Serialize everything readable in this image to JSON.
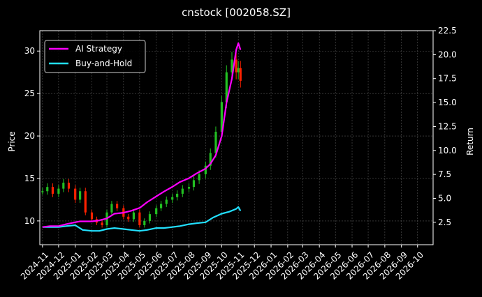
{
  "chart_data": {
    "type": "line",
    "title": "cnstock [002058.SZ]",
    "ylabel_left": "Price",
    "ylabel_right": "Return",
    "xlabel": "",
    "ylim_left": [
      7.2,
      32.4
    ],
    "ylim_right": [
      0.16,
      22.5
    ],
    "grid": true,
    "legend_placement": "top-left",
    "x_ticks": [
      "2024-11",
      "2024-12",
      "2025-01",
      "2025-02",
      "2025-03",
      "2025-04",
      "2025-05",
      "2025-06",
      "2025-07",
      "2025-08",
      "2025-09",
      "2025-10",
      "2025-11",
      "2025-12",
      "2026-01",
      "2026-02",
      "2026-03",
      "2026-04",
      "2026-05",
      "2026-06",
      "2026-07",
      "2026-08",
      "2026-09",
      "2026-10"
    ],
    "y_ticks_left": [
      10,
      15,
      20,
      25,
      30
    ],
    "y_ticks_right": [
      "2.5",
      "5.0",
      "7.5",
      "10.0",
      "12.5",
      "15.0",
      "17.5",
      "20.0",
      "22.5"
    ],
    "series": [
      {
        "name": "AI Strategy",
        "color": "#ff00ff",
        "axis": "right",
        "x": [
          "2024-11-01",
          "2024-11-15",
          "2024-12-01",
          "2024-12-15",
          "2025-01-01",
          "2025-01-10",
          "2025-02-01",
          "2025-02-15",
          "2025-03-01",
          "2025-03-15",
          "2025-04-01",
          "2025-04-15",
          "2025-05-01",
          "2025-05-15",
          "2025-06-01",
          "2025-06-15",
          "2025-07-01",
          "2025-07-15",
          "2025-08-01",
          "2025-08-15",
          "2025-09-01",
          "2025-09-10",
          "2025-09-20",
          "2025-10-01",
          "2025-10-10",
          "2025-10-20",
          "2025-10-28",
          "2025-11-01",
          "2025-11-05"
        ],
        "values": [
          2.0,
          2.1,
          2.1,
          2.3,
          2.5,
          2.6,
          2.6,
          2.7,
          2.9,
          3.4,
          3.5,
          3.7,
          4.0,
          4.6,
          5.2,
          5.7,
          6.2,
          6.7,
          7.1,
          7.6,
          8.1,
          8.6,
          9.5,
          11.5,
          15.0,
          17.5,
          20.5,
          21.2,
          20.5
        ]
      },
      {
        "name": "Buy-and-Hold",
        "color": "#22e0ff",
        "axis": "right",
        "x": [
          "2024-11-01",
          "2024-11-15",
          "2024-12-01",
          "2024-12-15",
          "2025-01-01",
          "2025-01-15",
          "2025-02-01",
          "2025-02-15",
          "2025-03-01",
          "2025-03-15",
          "2025-04-01",
          "2025-04-15",
          "2025-05-01",
          "2025-05-15",
          "2025-06-01",
          "2025-06-15",
          "2025-07-01",
          "2025-07-15",
          "2025-08-01",
          "2025-08-15",
          "2025-09-01",
          "2025-09-15",
          "2025-10-01",
          "2025-10-15",
          "2025-10-28",
          "2025-11-01",
          "2025-11-05"
        ],
        "values": [
          2.0,
          2.0,
          2.0,
          2.1,
          2.2,
          1.7,
          1.6,
          1.6,
          1.8,
          1.9,
          1.8,
          1.7,
          1.6,
          1.7,
          1.9,
          1.9,
          2.0,
          2.1,
          2.3,
          2.4,
          2.5,
          3.0,
          3.4,
          3.6,
          3.9,
          4.1,
          3.7
        ]
      },
      {
        "name": "",
        "type": "candlestick",
        "axis": "left",
        "up_color": "#22c022",
        "down_color": "#ff2200",
        "x": [
          "2024-11-01",
          "2024-11-10",
          "2024-11-20",
          "2024-12-01",
          "2024-12-10",
          "2024-12-20",
          "2025-01-01",
          "2025-01-10",
          "2025-01-20",
          "2025-02-01",
          "2025-02-10",
          "2025-02-20",
          "2025-03-01",
          "2025-03-10",
          "2025-03-20",
          "2025-04-01",
          "2025-04-10",
          "2025-04-20",
          "2025-05-01",
          "2025-05-10",
          "2025-05-20",
          "2025-06-01",
          "2025-06-10",
          "2025-06-20",
          "2025-07-01",
          "2025-07-10",
          "2025-07-20",
          "2025-08-01",
          "2025-08-10",
          "2025-08-20",
          "2025-09-01",
          "2025-09-10",
          "2025-09-20",
          "2025-10-01",
          "2025-10-10",
          "2025-10-20",
          "2025-10-28",
          "2025-11-01",
          "2025-11-05"
        ],
        "values": [
          13.5,
          14.0,
          13.2,
          13.8,
          14.5,
          13.8,
          12.5,
          13.5,
          11.0,
          10.2,
          9.8,
          9.5,
          11.0,
          12.0,
          11.5,
          10.5,
          10.2,
          11.0,
          9.5,
          10.0,
          10.8,
          11.5,
          12.0,
          12.5,
          12.8,
          13.2,
          13.8,
          14.0,
          14.8,
          15.5,
          16.5,
          18.0,
          20.5,
          24.0,
          27.5,
          29.0,
          27.5,
          28.0,
          26.5
        ]
      }
    ]
  }
}
